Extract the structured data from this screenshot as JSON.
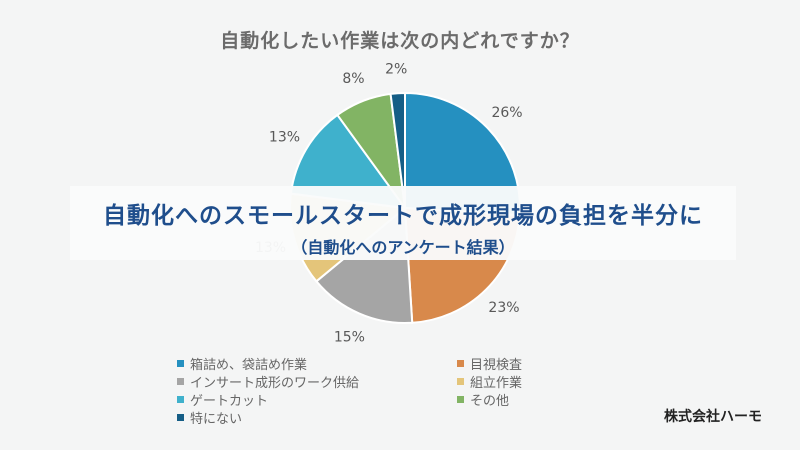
{
  "chart_data": {
    "type": "pie",
    "title": "自動化したい作業は次の内どれですか？",
    "categories": [
      "箱詰め、袋詰め作業",
      "目視検査",
      "インサート成形のワーク供給",
      "組立作業",
      "ゲートカット",
      "その他",
      "特にない"
    ],
    "values": [
      26,
      23,
      15,
      13,
      13,
      8,
      2
    ],
    "labels": [
      "26%",
      "23%",
      "15%",
      "13%",
      "13%",
      "8%",
      "2%"
    ],
    "colors": [
      "#2590c0",
      "#d8894b",
      "#a5a5a5",
      "#e4c57a",
      "#3fb1cc",
      "#82b464",
      "#155e86"
    ],
    "legend": "bottom"
  },
  "banner": {
    "main": "自動化へのスモールスタートで成形現場の負担を半分に",
    "sub": "（自動化へのアンケート結果）"
  },
  "company": "株式会社ハーモ"
}
